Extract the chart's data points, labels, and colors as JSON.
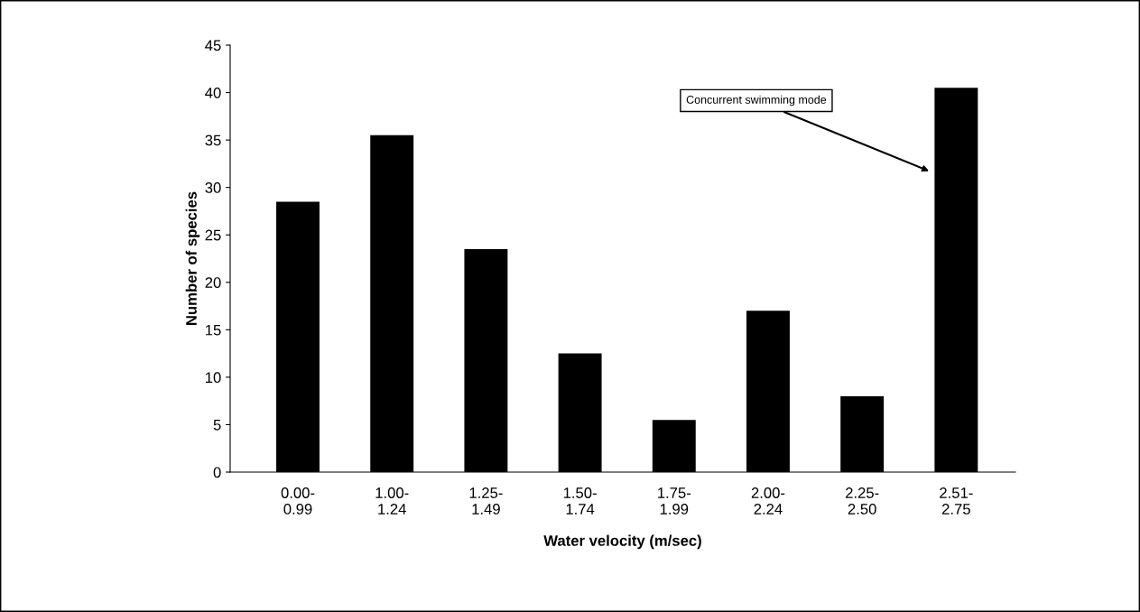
{
  "chart_data": {
    "type": "bar",
    "xlabel": "Water velocity (m/sec)",
    "ylabel": "Number of species",
    "categories": [
      "0.00-\n0.99",
      "1.00-\n1.24",
      "1.25-\n1.49",
      "1.50-\n1.74",
      "1.75-\n1.99",
      "2.00-\n2.24",
      "2.25-\n2.50",
      "2.51-\n2.75"
    ],
    "values": [
      28.5,
      35.5,
      23.5,
      12.5,
      5.5,
      17,
      8,
      40.5
    ],
    "color": "#000000",
    "ylim": [
      0,
      45
    ],
    "yticks": [
      0,
      5,
      10,
      15,
      20,
      25,
      30,
      35,
      40,
      45
    ],
    "annotations": [
      "Concurrent swimming mode"
    ],
    "grid": false,
    "legend": false
  }
}
